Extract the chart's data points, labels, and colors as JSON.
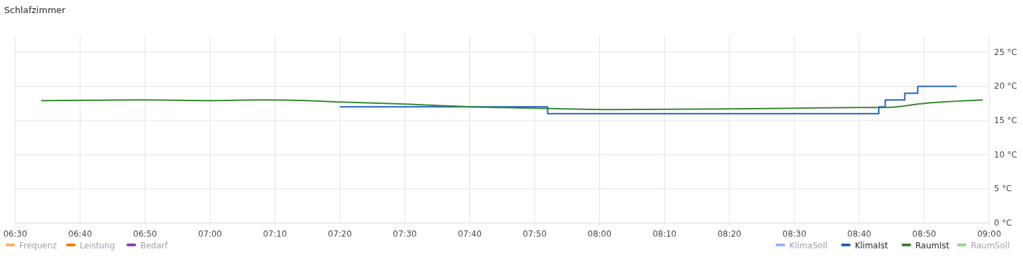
{
  "chart_data": {
    "type": "line",
    "title": "Schlafzimmer",
    "xlim": [
      6.5,
      9
    ],
    "xticks": [
      {
        "value": 6.5,
        "label": "06:30"
      },
      {
        "value": 6.6667,
        "label": "06:40"
      },
      {
        "value": 6.8333,
        "label": "06:50"
      },
      {
        "value": 7,
        "label": "07:00"
      },
      {
        "value": 7.1667,
        "label": "07:10"
      },
      {
        "value": 7.3333,
        "label": "07:20"
      },
      {
        "value": 7.5,
        "label": "07:30"
      },
      {
        "value": 7.6667,
        "label": "07:40"
      },
      {
        "value": 7.8333,
        "label": "07:50"
      },
      {
        "value": 8,
        "label": "08:00"
      },
      {
        "value": 8.1667,
        "label": "08:10"
      },
      {
        "value": 8.3333,
        "label": "08:20"
      },
      {
        "value": 8.5,
        "label": "08:30"
      },
      {
        "value": 8.6667,
        "label": "08:40"
      },
      {
        "value": 8.8333,
        "label": "08:50"
      },
      {
        "value": 9,
        "label": "09:00"
      }
    ],
    "y2lim": [
      0,
      27.5
    ],
    "y2ticks": [
      {
        "value": 0,
        "label": "0 °C"
      },
      {
        "value": 5,
        "label": "5 °C"
      },
      {
        "value": 10,
        "label": "10 °C"
      },
      {
        "value": 15,
        "label": "15 °C"
      },
      {
        "value": 20,
        "label": "20 °C"
      },
      {
        "value": 25,
        "label": "25 °C"
      }
    ],
    "grid": true,
    "legend": "bottom",
    "series": [
      {
        "name": "Frequenz",
        "color": "#ffb357"
      },
      {
        "name": "Leistung",
        "color": "#ff780a"
      },
      {
        "name": "Bedarf",
        "color": "#8f3bb8"
      },
      {
        "name": "KlimaSoll",
        "color": "#8ab8ff",
        "axis": "y2"
      },
      {
        "name": "KlimaIst",
        "color": "#1f60c4",
        "axis": "y2",
        "type": "step",
        "x": [
          7.3333,
          7.8667,
          8.7167,
          8.7333,
          8.7833,
          8.8167,
          8.9167
        ],
        "values": [
          17,
          16,
          17,
          18,
          19,
          20,
          20
        ]
      },
      {
        "name": "RaumIst",
        "color": "#37872d",
        "axis": "y2",
        "x": [
          6.5667,
          6.8333,
          7,
          7.1333,
          7.25,
          7.3333,
          7.5,
          7.6667,
          7.8333,
          8.0333,
          8.3333,
          8.5,
          8.6667,
          8.7333,
          8.8333,
          8.9833
        ],
        "values": [
          17.9,
          18,
          17.9,
          18,
          17.9,
          17.7,
          17.4,
          17,
          16.8,
          16.6,
          16.7,
          16.8,
          16.9,
          16.9,
          17.5,
          18
        ]
      },
      {
        "name": "RaumSoll",
        "color": "#96d98d",
        "axis": "y2"
      }
    ]
  }
}
